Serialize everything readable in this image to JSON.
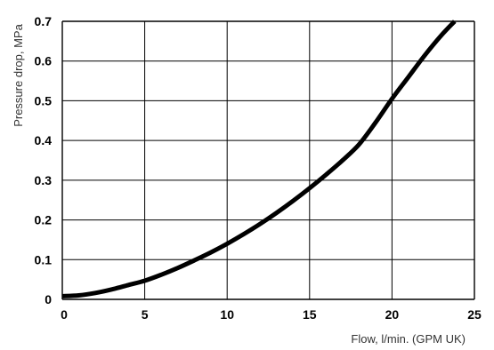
{
  "chart_data": {
    "type": "line",
    "xlabel": "Flow, l/min. (GPM UK)",
    "ylabel": "Pressure drop, MPa",
    "xlim": [
      0,
      25
    ],
    "ylim": [
      0,
      0.7
    ],
    "x_ticks": [
      0,
      5,
      10,
      15,
      20,
      25
    ],
    "y_ticks": [
      0,
      0.1,
      0.2,
      0.3,
      0.4,
      0.5,
      0.6,
      0.7
    ],
    "x_tick_labels": [
      "0",
      "5",
      "10",
      "15",
      "20",
      "25"
    ],
    "y_tick_labels": [
      "0",
      "0.1",
      "0.2",
      "0.3",
      "0.4",
      "0.5",
      "0.6",
      "0.7"
    ],
    "grid": true,
    "series": [
      {
        "x": [
          0,
          1,
          2,
          3,
          4,
          5,
          6,
          7,
          8,
          9,
          10,
          11,
          12,
          13,
          14,
          15,
          16,
          17,
          18,
          19,
          20,
          21,
          22,
          23,
          23.8
        ],
        "y": [
          0.008,
          0.01,
          0.016,
          0.025,
          0.036,
          0.047,
          0.062,
          0.079,
          0.098,
          0.118,
          0.14,
          0.164,
          0.19,
          0.218,
          0.248,
          0.28,
          0.314,
          0.35,
          0.39,
          0.445,
          0.505,
          0.56,
          0.615,
          0.665,
          0.7
        ]
      }
    ],
    "colors": {
      "line": "#000000",
      "grid": "#000000",
      "background": "#ffffff"
    }
  }
}
